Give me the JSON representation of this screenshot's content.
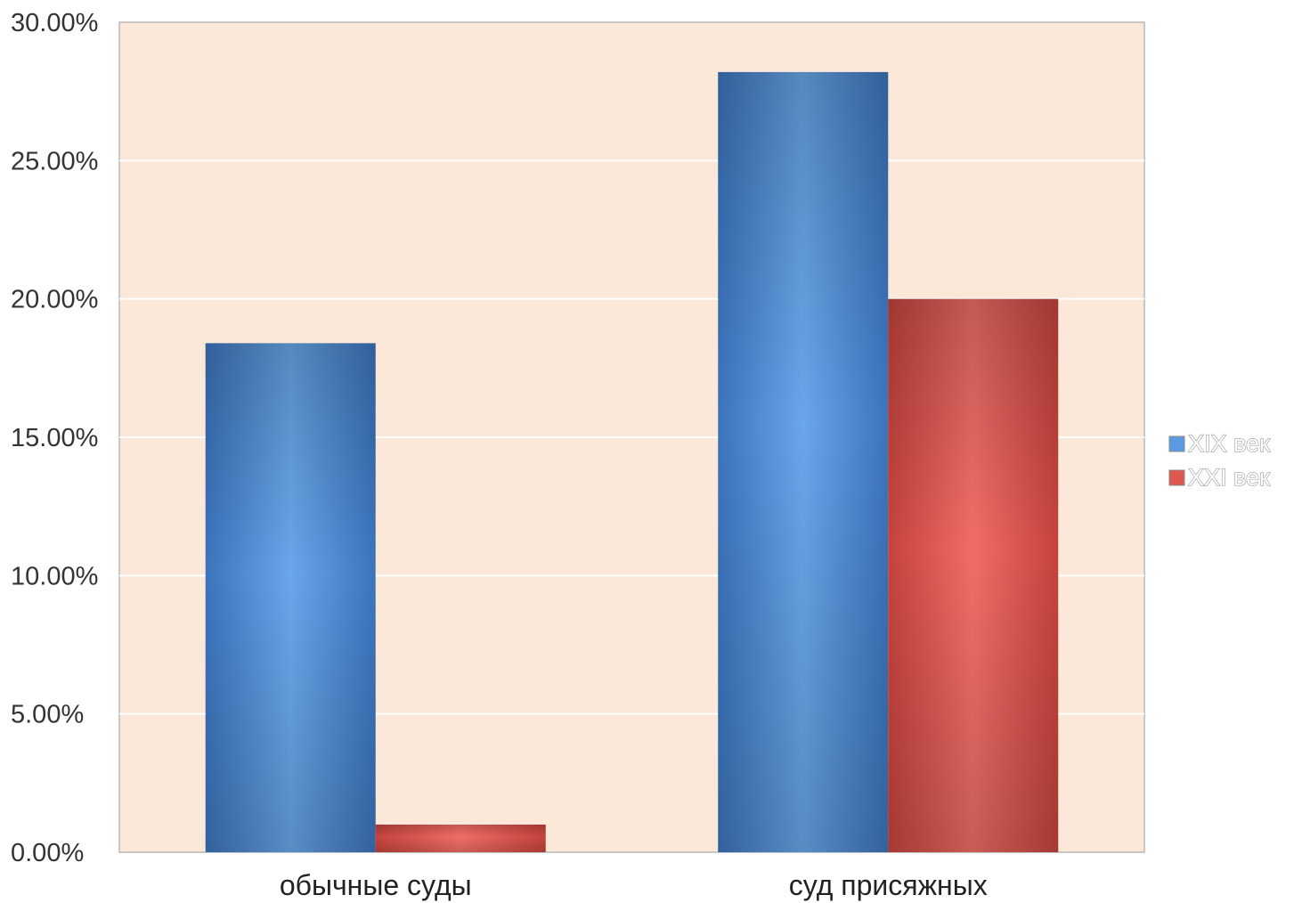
{
  "chart_data": {
    "type": "bar",
    "categories": [
      "обычные суды",
      "суд присяжных"
    ],
    "series": [
      {
        "name": "XIX век",
        "values": [
          18.4,
          28.2
        ],
        "color": "#5b9ae2"
      },
      {
        "name": "XXI век",
        "values": [
          1.0,
          20.0
        ],
        "color": "#e0574f"
      }
    ],
    "yticks": [
      "0.00%",
      "5.00%",
      "10.00%",
      "15.00%",
      "20.00%",
      "25.00%",
      "30.00%"
    ],
    "ylim": [
      0,
      30
    ],
    "grid": true,
    "legend": "right",
    "plot_background": "#fce8d8"
  }
}
